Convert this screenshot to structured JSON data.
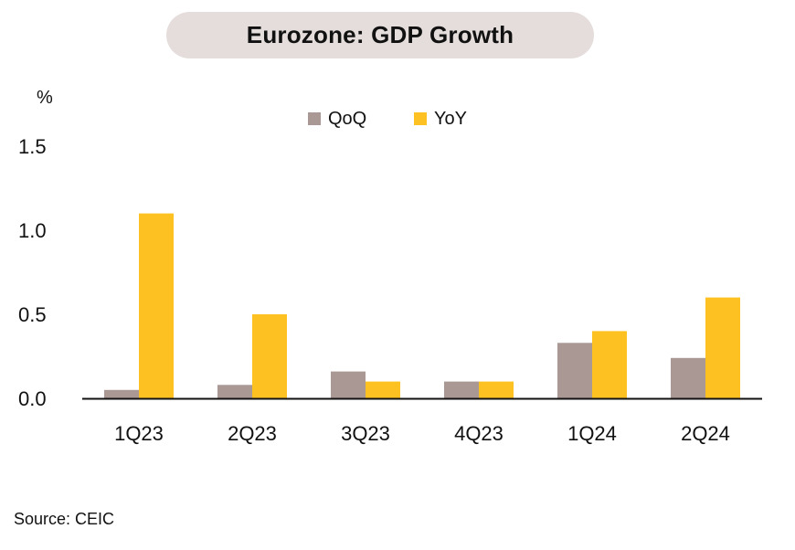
{
  "title": "Eurozone: GDP Growth",
  "source": "Source: CEIC",
  "chart_data": {
    "type": "bar",
    "title": "Eurozone: GDP Growth",
    "ylabel": "%",
    "xlabel": "",
    "ylim": [
      0,
      1.5
    ],
    "yticks": [
      "0.0",
      "0.5",
      "1.0",
      "1.5"
    ],
    "categories": [
      "1Q23",
      "2Q23",
      "3Q23",
      "4Q23",
      "1Q24",
      "2Q24"
    ],
    "series": [
      {
        "name": "QoQ",
        "color": "#a99894",
        "values": [
          0.05,
          0.08,
          0.16,
          0.1,
          0.33,
          0.24
        ]
      },
      {
        "name": "YoY",
        "color": "#fec122",
        "values": [
          1.1,
          0.5,
          0.1,
          0.1,
          0.4,
          0.6
        ]
      }
    ],
    "grid": false,
    "legend": "top-center"
  }
}
